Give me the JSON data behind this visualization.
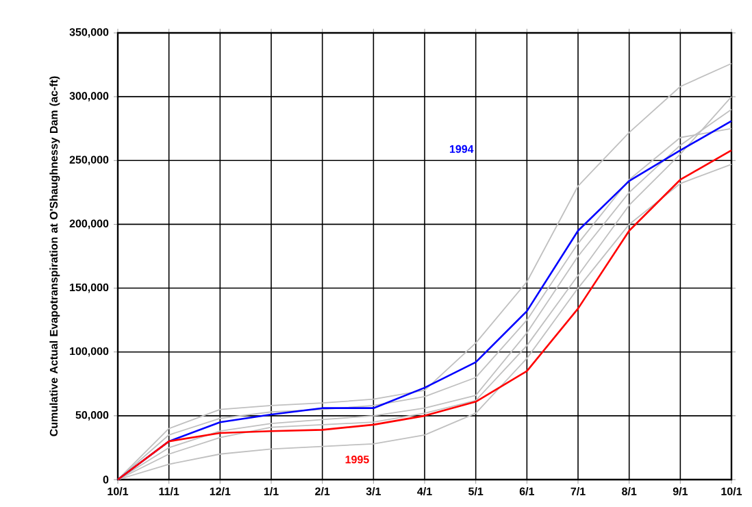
{
  "chart_data": {
    "type": "line",
    "ylabel": "Cumulative Actual Evapotranspiration at O'Shaughnessy Dam (ac-ft)",
    "categories": [
      "10/1",
      "11/1",
      "12/1",
      "1/1",
      "2/1",
      "3/1",
      "4/1",
      "5/1",
      "6/1",
      "7/1",
      "8/1",
      "9/1",
      "10/1"
    ],
    "ylim": [
      0,
      350000
    ],
    "yticks": [
      {
        "value": 0,
        "label": "0"
      },
      {
        "value": 50000,
        "label": "50,000"
      },
      {
        "value": 100000,
        "label": "100,000"
      },
      {
        "value": 150000,
        "label": "150,000"
      },
      {
        "value": 200000,
        "label": "200,000"
      },
      {
        "value": 250000,
        "label": "250,000"
      },
      {
        "value": 300000,
        "label": "300,000"
      },
      {
        "value": 350000,
        "label": "350,000"
      }
    ],
    "grid": true,
    "series": [
      {
        "color": "#c0c0c0",
        "values": [
          0,
          40000,
          55000,
          58000,
          60000,
          63000,
          70000,
          107000,
          155000,
          230000,
          272000,
          308000,
          326000
        ]
      },
      {
        "color": "#c0c0c0",
        "values": [
          0,
          12000,
          20000,
          24000,
          26000,
          28000,
          35000,
          52000,
          95000,
          150000,
          200000,
          232000,
          247000
        ]
      },
      {
        "color": "#c0c0c0",
        "values": [
          0,
          25000,
          38000,
          44000,
          47000,
          50000,
          56000,
          66000,
          115000,
          175000,
          225000,
          262000,
          290000
        ]
      },
      {
        "color": "#c0c0c0",
        "values": [
          0,
          20000,
          33000,
          41000,
          43000,
          45000,
          52000,
          62000,
          105000,
          160000,
          215000,
          255000,
          300000
        ]
      },
      {
        "color": "#c0c0c0",
        "values": [
          0,
          35000,
          48000,
          53000,
          55000,
          58000,
          65000,
          80000,
          125000,
          185000,
          235000,
          268000,
          275000
        ]
      },
      {
        "name": "1994",
        "color": "#0000ff",
        "values": [
          0,
          30000,
          45000,
          51000,
          56000,
          56000,
          72000,
          92000,
          132000,
          195000,
          234000,
          258000,
          281000
        ]
      },
      {
        "name": "1995",
        "color": "#ff0000",
        "values": [
          0,
          30000,
          36500,
          38000,
          39000,
          43000,
          50000,
          61000,
          85000,
          134000,
          195000,
          235000,
          258000
        ]
      }
    ]
  }
}
